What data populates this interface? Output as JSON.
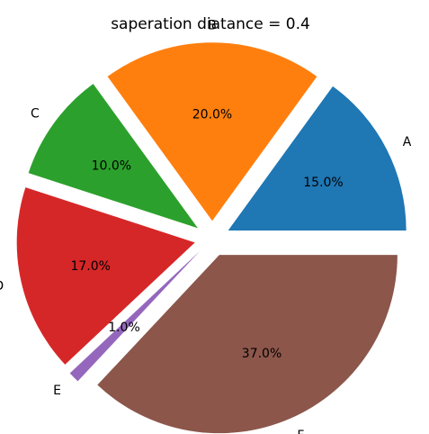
{
  "chart_data": {
    "type": "pie",
    "title": "saperation diatance = 0.4",
    "labels": [
      "A",
      "B",
      "C",
      "D",
      "E",
      "F"
    ],
    "values": [
      15,
      20,
      10,
      17,
      1,
      37
    ],
    "percent_labels": [
      "15.0%",
      "20.0%",
      "10.0%",
      "17.0%",
      "1.0%",
      "37.0%"
    ],
    "explode": [
      0.4,
      0.4,
      0.4,
      0.4,
      0.4,
      0.4
    ],
    "colors": [
      "#1f77b4",
      "#ff7f0e",
      "#2ca02c",
      "#d62728",
      "#9467bd",
      "#8c564b"
    ],
    "start_angle": 0,
    "direction": "counterclockwise"
  }
}
